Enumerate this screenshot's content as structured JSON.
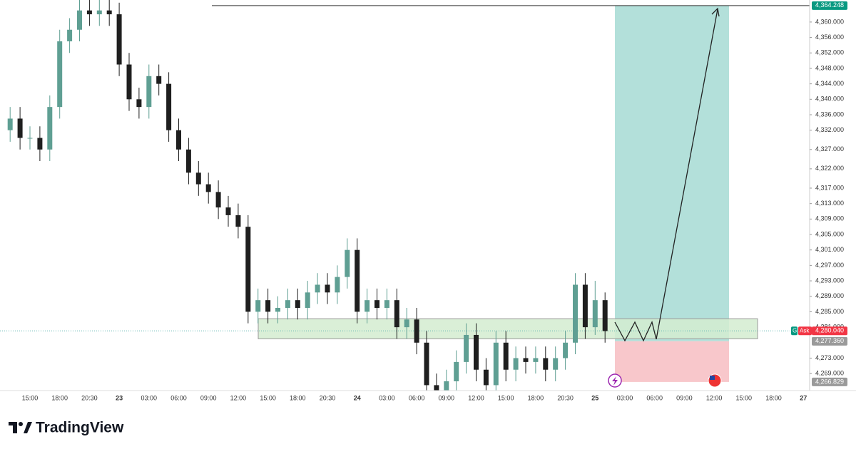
{
  "chart_data": {
    "type": "candlestick",
    "categories": [
      null,
      null,
      "15:00",
      null,
      null,
      "18:00",
      null,
      null,
      "20:30",
      null,
      null,
      "23",
      null,
      null,
      "03:00",
      null,
      null,
      "06:00",
      null,
      null,
      "09:00",
      null,
      null,
      "12:00",
      null,
      null,
      "15:00",
      null,
      null,
      "18:00",
      null,
      null,
      "20:30",
      null,
      null,
      "24",
      null,
      null,
      "03:00",
      null,
      null,
      "06:00",
      null,
      null,
      "09:00",
      null,
      null,
      "12:00",
      null,
      null,
      "15:00",
      null,
      null,
      "18:00",
      null,
      null,
      "20:30",
      null,
      null,
      "25",
      null,
      null,
      "03:00",
      null,
      null,
      "06:00",
      null,
      null,
      "09:00",
      null,
      null,
      "12:00",
      null,
      null,
      "15:00",
      null,
      null,
      "18:00",
      null,
      null,
      "27"
    ],
    "open": [
      4332,
      4335,
      4330,
      4330,
      4327,
      4338,
      4355,
      4358,
      4363,
      4362,
      4363,
      4362,
      4349,
      4340,
      4338,
      4346,
      4344,
      4332,
      4327,
      4321,
      4318,
      4316,
      4312,
      4310,
      4307,
      4285,
      4288,
      4285,
      4286,
      4288,
      4286,
      4290,
      4292,
      4290,
      4294,
      4301,
      4285,
      4288,
      4286,
      4288,
      4281,
      4283,
      4277,
      4266,
      4263,
      4267,
      4272,
      4279,
      4270,
      4266,
      4277,
      4270,
      4273,
      4272,
      4273,
      4270,
      4273,
      4277,
      4292,
      4281,
      4288,
      null,
      null,
      null,
      null,
      null,
      null,
      null,
      null,
      null,
      null,
      null,
      null,
      null,
      null,
      null,
      null,
      null,
      null,
      null,
      null
    ],
    "high": [
      4338,
      4338,
      4333,
      4333,
      4341,
      4358,
      4361,
      4366,
      4366,
      4366,
      4366,
      4365,
      4352,
      4343,
      4349,
      4349,
      4347,
      4335,
      4330,
      4324,
      4321,
      4319,
      4315,
      4313,
      4310,
      4291,
      4291,
      4289,
      4291,
      4291,
      4293,
      4295,
      4295,
      4297,
      4304,
      4304,
      4291,
      4291,
      4291,
      4291,
      4286,
      4286,
      4280,
      4269,
      4270,
      4275,
      4282,
      4282,
      4273,
      4280,
      4280,
      4276,
      4276,
      4276,
      4276,
      4276,
      4280,
      4295,
      4295,
      4293,
      4290,
      null,
      null,
      null,
      null,
      null,
      null,
      null,
      null,
      null,
      null,
      null,
      null,
      null,
      null,
      null,
      null,
      null,
      null,
      null,
      null
    ],
    "low": [
      4329,
      4327,
      4327,
      4324,
      4324,
      4335,
      4352,
      4355,
      4359,
      4359,
      4359,
      4346,
      4337,
      4335,
      4335,
      4341,
      4329,
      4324,
      4318,
      4315,
      4313,
      4309,
      4307,
      4304,
      4282,
      4282,
      4282,
      4282,
      4283,
      4283,
      4283,
      4287,
      4287,
      4287,
      4291,
      4282,
      4282,
      4283,
      4283,
      4278,
      4278,
      4274,
      4263,
      4260,
      4260,
      4264,
      4269,
      4267,
      4263,
      4263,
      4267,
      4267,
      4269,
      4269,
      4267,
      4267,
      4270,
      4274,
      4278,
      4279,
      4277,
      null,
      null,
      null,
      null,
      null,
      null,
      null,
      null,
      null,
      null,
      null,
      null,
      null,
      null,
      null,
      null,
      null,
      null,
      null,
      null
    ],
    "close": [
      4335,
      4330,
      4330,
      4327,
      4338,
      4355,
      4358,
      4363,
      4362,
      4363,
      4362,
      4349,
      4340,
      4338,
      4346,
      4344,
      4332,
      4327,
      4321,
      4318,
      4316,
      4312,
      4310,
      4307,
      4285,
      4288,
      4285,
      4286,
      4288,
      4286,
      4290,
      4292,
      4290,
      4294,
      4301,
      4285,
      4288,
      4286,
      4288,
      4281,
      4283,
      4277,
      4266,
      4263,
      4267,
      4272,
      4279,
      4270,
      4266,
      4277,
      4270,
      4273,
      4272,
      4273,
      4270,
      4273,
      4277,
      4292,
      4281,
      4288,
      4280,
      null,
      null,
      null,
      null,
      null,
      null,
      null,
      null,
      null,
      null,
      null,
      null,
      null,
      null,
      null,
      null,
      null,
      null,
      null,
      null
    ],
    "up_color": "#5f9f93",
    "down_color": "#1f1f1f",
    "ylim": [
      4264.6,
      4365.7
    ],
    "yticks": [
      {
        "value": 4360,
        "label": "4,360.000"
      },
      {
        "value": 4356,
        "label": "4,356.000"
      },
      {
        "value": 4352,
        "label": "4,352.000"
      },
      {
        "value": 4348,
        "label": "4,348.000"
      },
      {
        "value": 4344,
        "label": "4,344.000"
      },
      {
        "value": 4340,
        "label": "4,340.000"
      },
      {
        "value": 4336,
        "label": "4,336.000"
      },
      {
        "value": 4332,
        "label": "4,332.000"
      },
      {
        "value": 4327,
        "label": "4,327.000"
      },
      {
        "value": 4322,
        "label": "4,322.000"
      },
      {
        "value": 4317,
        "label": "4,317.000"
      },
      {
        "value": 4313,
        "label": "4,313.000"
      },
      {
        "value": 4309,
        "label": "4,309.000"
      },
      {
        "value": 4305,
        "label": "4,305.000"
      },
      {
        "value": 4301,
        "label": "4,301.000"
      },
      {
        "value": 4297,
        "label": "4,297.000"
      },
      {
        "value": 4293,
        "label": "4,293.000"
      },
      {
        "value": 4289,
        "label": "4,289.000"
      },
      {
        "value": 4285,
        "label": "4,285.000"
      },
      {
        "value": 4281,
        "label": "4,281.000"
      },
      {
        "value": 4273,
        "label": "4,273.000"
      },
      {
        "value": 4269,
        "label": "4,269.000"
      }
    ],
    "grid": false,
    "zone": [
      4278,
      4283.2
    ],
    "zone_color": "#d4ecd0",
    "price_labels": [
      {
        "value": 4364.248,
        "label": "4,364.248",
        "color": "#089981"
      },
      {
        "value": 4280.04,
        "label": "4,280.040",
        "color": "#f23645"
      },
      {
        "value": 4277.36,
        "label": "4,277.360",
        "color": "#9a9a9a"
      },
      {
        "value": 4266.829,
        "label": "4,266.829",
        "color": "#9a9a9a"
      }
    ],
    "ask_tag": "Ask",
    "g_tag": "G"
  },
  "brand": "TradingView"
}
